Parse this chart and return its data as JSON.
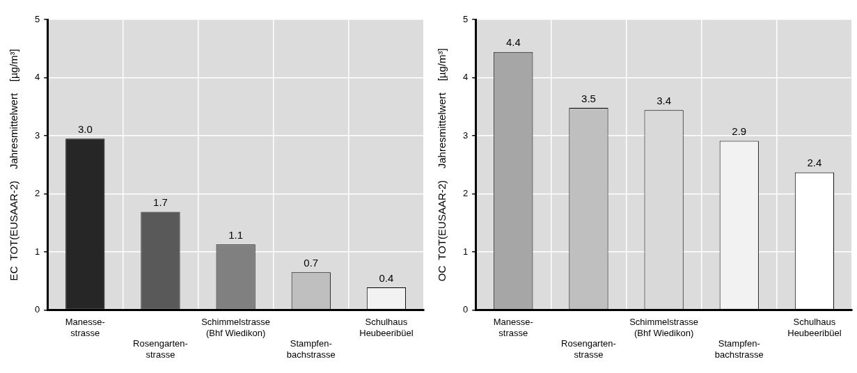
{
  "chart_data": [
    {
      "type": "bar",
      "ylabel": "EC  TOT(EUSAAR-2)    Jahresmittelwert    [µg/m³]",
      "categories": [
        "Manesse-\nstrasse",
        "Rosengarten-\nstrasse",
        "Schimmelstrasse\n(Bhf Wiedikon)",
        "Stampfen-\nbachstrasse",
        "Schulhaus\nHeubeeribüel"
      ],
      "values": [
        2.95,
        1.69,
        1.13,
        0.65,
        0.39
      ],
      "value_labels": [
        "3.0",
        "1.7",
        "1.1",
        "0.7",
        "0.4"
      ],
      "colors": [
        "#262626",
        "#595959",
        "#808080",
        "#bfbfbf",
        "#f2f2f2"
      ],
      "ylim": [
        0,
        5
      ],
      "yticks": [
        0,
        1,
        2,
        3,
        4,
        5
      ],
      "grid": true
    },
    {
      "type": "bar",
      "ylabel": "OC  TOT(EUSAAR-2)    Jahresmittelwert    [µg/m³]",
      "categories": [
        "Manesse-\nstrasse",
        "Rosengarten-\nstrasse",
        "Schimmelstrasse\n(Bhf Wiedikon)",
        "Stampfen-\nbachstrasse",
        "Schulhaus\nHeubeeribüel"
      ],
      "values": [
        4.44,
        3.48,
        3.44,
        2.91,
        2.37
      ],
      "value_labels": [
        "4.4",
        "3.5",
        "3.4",
        "2.9",
        "2.4"
      ],
      "colors": [
        "#a6a6a6",
        "#bfbfbf",
        "#d9d9d9",
        "#f2f2f2",
        "#ffffff"
      ],
      "ylim": [
        0,
        5
      ],
      "yticks": [
        0,
        1,
        2,
        3,
        4,
        5
      ],
      "grid": true
    }
  ]
}
